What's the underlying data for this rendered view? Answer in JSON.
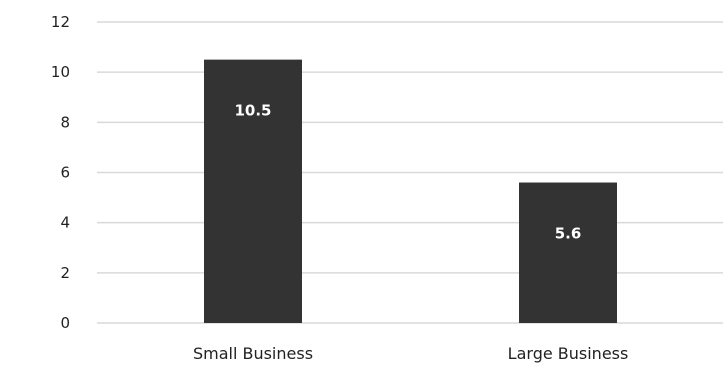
{
  "chart_data": {
    "type": "bar",
    "categories": [
      "Small Business",
      "Large Business"
    ],
    "values": [
      10.5,
      5.6
    ],
    "data_labels": [
      "10.5",
      "5.6"
    ],
    "ylim": [
      0,
      12
    ],
    "yticks": [
      0,
      2,
      4,
      6,
      8,
      10,
      12
    ],
    "ytick_labels": [
      "0",
      "2",
      "4",
      "6",
      "8",
      "10",
      "12"
    ],
    "grid": true,
    "legend": "none",
    "colors": {
      "bar": "#333333",
      "grid": "#d9d9d9",
      "data_label": "#ffffff",
      "text": "#222222"
    }
  }
}
